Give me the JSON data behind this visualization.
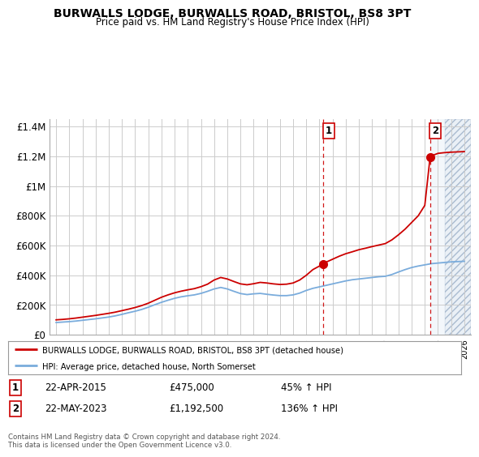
{
  "title": "BURWALLS LODGE, BURWALLS ROAD, BRISTOL, BS8 3PT",
  "subtitle": "Price paid vs. HM Land Registry's House Price Index (HPI)",
  "ylabel_ticks": [
    "£0",
    "£200K",
    "£400K",
    "£600K",
    "£800K",
    "£1M",
    "£1.2M",
    "£1.4M"
  ],
  "ytick_values": [
    0,
    200000,
    400000,
    600000,
    800000,
    1000000,
    1200000,
    1400000
  ],
  "ylim": [
    0,
    1450000
  ],
  "line1_color": "#cc0000",
  "line2_color": "#7aacdc",
  "point1_x": 2015.3,
  "point1_y": 475000,
  "point2_x": 2023.4,
  "point2_y": 1192500,
  "vline1_x": 2015.3,
  "vline2_x": 2023.4,
  "hatch_start": 2024.5,
  "hatch_end": 2026.5,
  "legend_label1": "BURWALLS LODGE, BURWALLS ROAD, BRISTOL, BS8 3PT (detached house)",
  "legend_label2": "HPI: Average price, detached house, North Somerset",
  "annotation1_date": "22-APR-2015",
  "annotation1_price": "£475,000",
  "annotation1_hpi": "45% ↑ HPI",
  "annotation2_date": "22-MAY-2023",
  "annotation2_price": "£1,192,500",
  "annotation2_hpi": "136% ↑ HPI",
  "footer": "Contains HM Land Registry data © Crown copyright and database right 2024.\nThis data is licensed under the Open Government Licence v3.0.",
  "bg_color": "#ffffff",
  "grid_color": "#cccccc",
  "xlim_left": 1994.5,
  "xlim_right": 2026.5
}
